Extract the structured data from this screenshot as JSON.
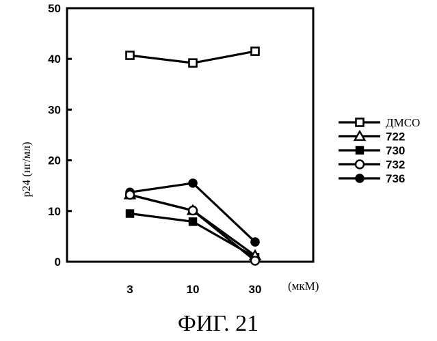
{
  "chart_data": {
    "type": "line",
    "ylabel": "p24 (нг/мл)",
    "xunit": "(мкМ)",
    "caption": "ФИГ. 21",
    "categories": [
      "3",
      "10",
      "30"
    ],
    "yticks": [
      "0",
      "10",
      "20",
      "30",
      "40",
      "50"
    ],
    "ylim": [
      0,
      50
    ],
    "grid": false,
    "legend_position": "right",
    "series": [
      {
        "name": "ДМСО",
        "marker": "open-square",
        "values": [
          40.7,
          39.2,
          41.5
        ]
      },
      {
        "name": "722",
        "marker": "open-triangle",
        "values": [
          13.2,
          10.1,
          1.2
        ]
      },
      {
        "name": "730",
        "marker": "filled-square",
        "values": [
          9.5,
          7.9,
          0.9
        ]
      },
      {
        "name": "732",
        "marker": "open-circle",
        "values": [
          13.2,
          10.1,
          0.2
        ]
      },
      {
        "name": "736",
        "marker": "filled-circle",
        "values": [
          13.7,
          15.5,
          3.9
        ]
      }
    ]
  }
}
